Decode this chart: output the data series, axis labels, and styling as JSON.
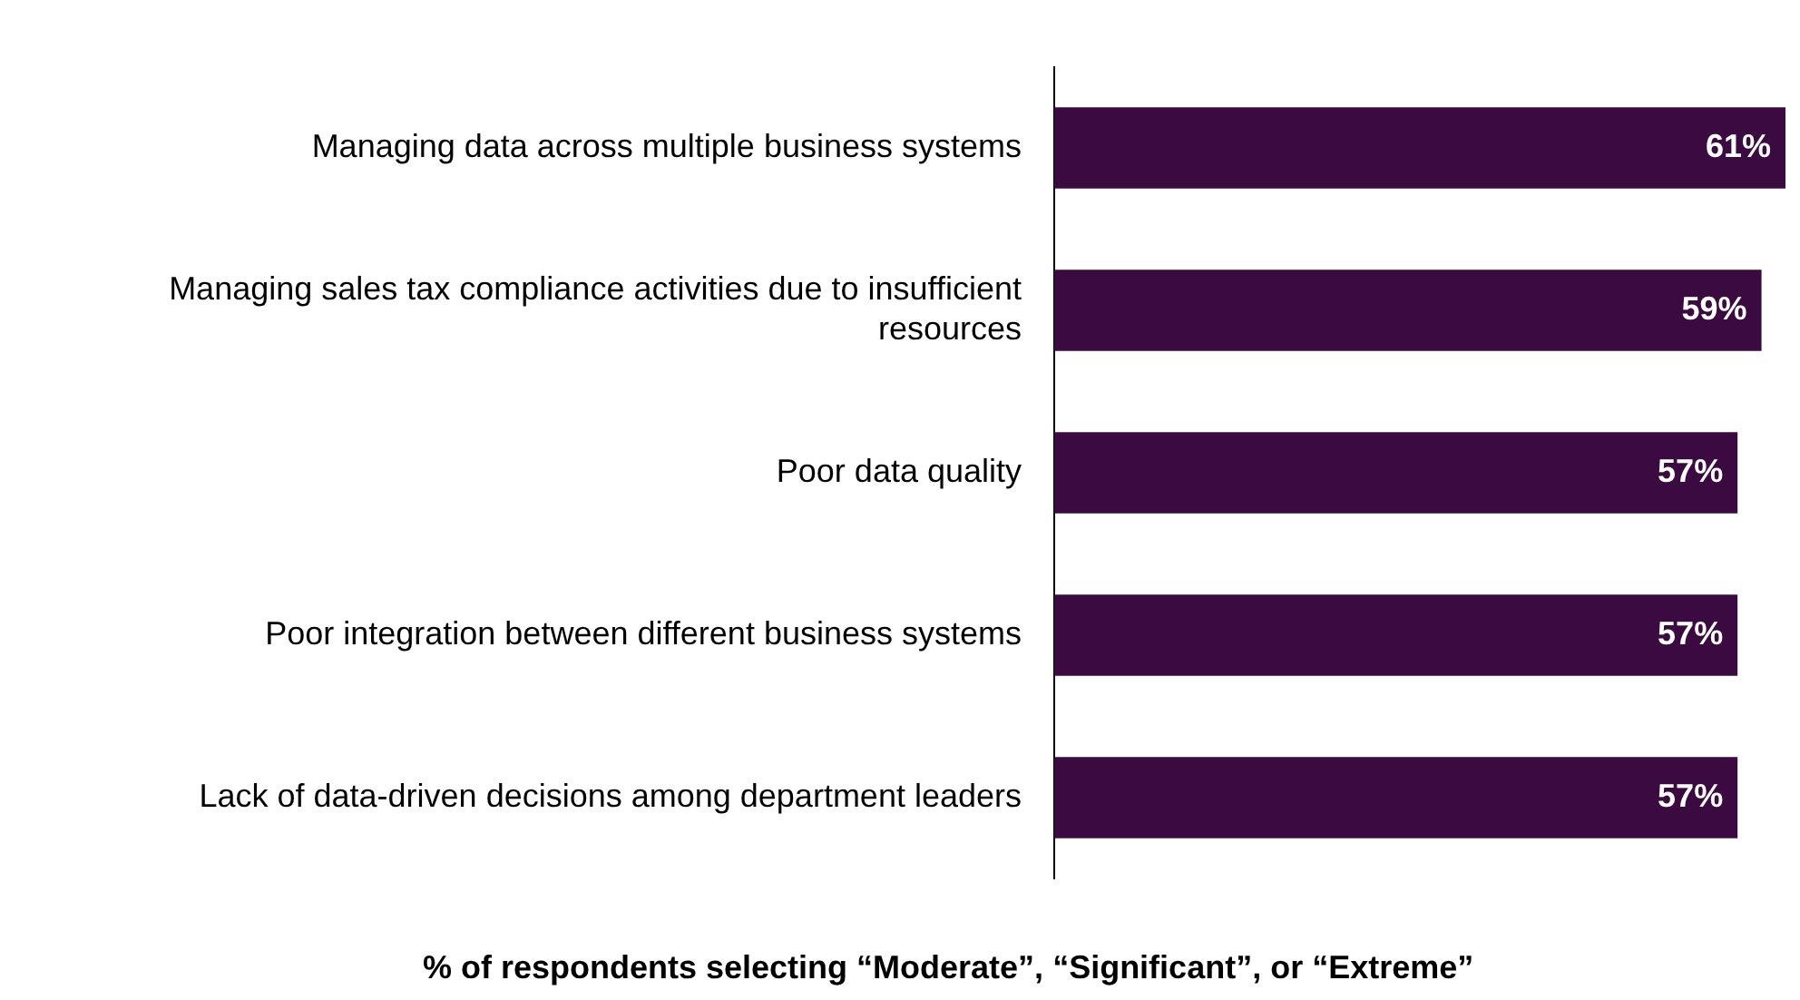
{
  "chart_data": {
    "type": "bar",
    "orientation": "horizontal",
    "xlabel": "% of respondents selecting “Moderate”, “Significant”, or “Extreme”",
    "categories": [
      "Managing data across multiple business systems",
      "Managing sales tax compliance activities due to insufficient resources",
      "Poor data quality",
      "Poor integration between different business systems",
      "Lack of data-driven decisions among department leaders"
    ],
    "values": [
      61,
      59,
      57,
      57,
      57
    ],
    "value_labels": [
      "61%",
      "59%",
      "57%",
      "57%",
      "57%"
    ],
    "color": "#3b0a40",
    "grid": false,
    "legend": false,
    "tick_labels": "y"
  }
}
